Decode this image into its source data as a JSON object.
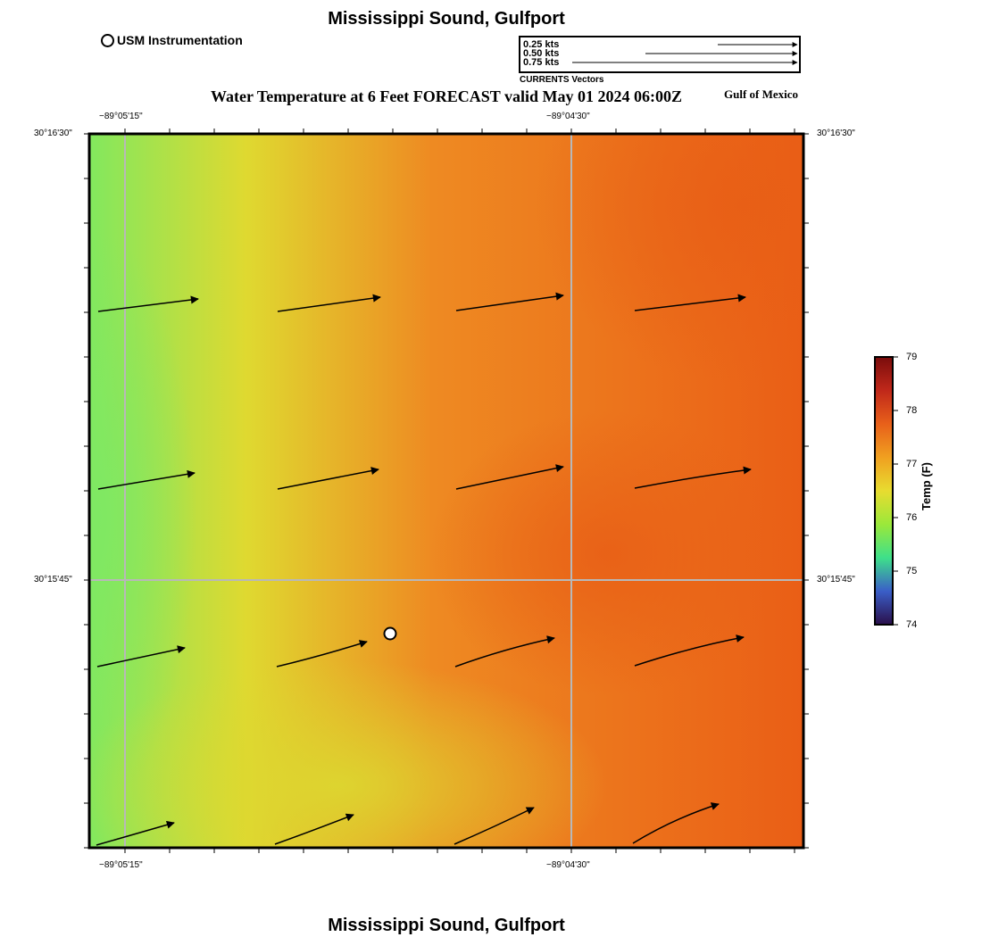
{
  "header": {
    "title": "Mississippi Sound, Gulfport",
    "footer_title": "Mississippi Sound, Gulfport",
    "map_title": "Water Temperature at 6 Feet FORECAST valid May 01 2024 06:00Z",
    "region_label": "Gulf of Mexico"
  },
  "legend": {
    "instrument_label": "USM Instrumentation",
    "vector_scale": [
      {
        "label": "0.25 kts",
        "speed_kts": 0.25
      },
      {
        "label": "0.50 kts",
        "speed_kts": 0.5
      },
      {
        "label": "0.75 kts",
        "speed_kts": 0.75
      }
    ],
    "vector_caption": "CURRENTS Vectors"
  },
  "axes": {
    "lon_labels": [
      "−89°05'15\"",
      "−89°04'30\""
    ],
    "lat_labels": [
      "30°16'30\"",
      "30°15'45\""
    ]
  },
  "colorbar": {
    "title": "Temp (F)",
    "min": 74,
    "max": 79,
    "ticks": [
      "74",
      "75",
      "76",
      "77",
      "78",
      "79"
    ],
    "colors": [
      "#2a0f4a",
      "#3a5ec8",
      "#3ee08a",
      "#9be83a",
      "#e8dc30",
      "#f0a020",
      "#e8601a",
      "#c0281a",
      "#7a0c0c"
    ]
  },
  "colors": {
    "cool": "#82e85e",
    "mid": "#dfd930",
    "warm": "#ee8a22",
    "hot": "#ea5e16"
  },
  "station": {
    "name": "USM Instrumentation"
  }
}
